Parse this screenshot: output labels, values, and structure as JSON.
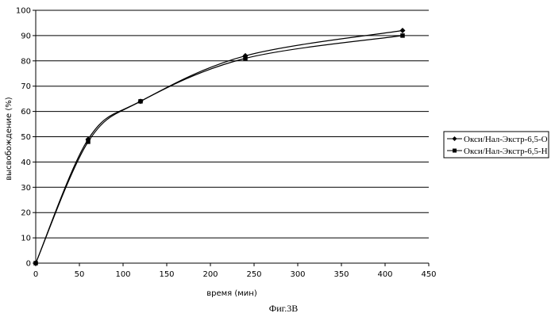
{
  "chart_data": {
    "type": "line",
    "xlabel": "время (мин)",
    "ylabel": "высвобождение (%)",
    "caption": "Фиг.3В",
    "xlim": [
      0,
      450
    ],
    "ylim": [
      0,
      100
    ],
    "x_ticks": [
      0,
      50,
      100,
      150,
      200,
      250,
      300,
      350,
      400,
      450
    ],
    "y_ticks": [
      0,
      10,
      20,
      30,
      40,
      50,
      60,
      70,
      80,
      90,
      100
    ],
    "grid": "horizontal",
    "legend_position": "right",
    "series": [
      {
        "name": "Окси/Нал-Экстр-6,5-О",
        "marker": "diamond",
        "x": [
          0,
          60,
          120,
          240,
          420
        ],
        "values": [
          0,
          49,
          64,
          82,
          92
        ]
      },
      {
        "name": "Окси/Нал-Экстр-6,5-Н",
        "marker": "square",
        "x": [
          0,
          60,
          120,
          240,
          420
        ],
        "values": [
          0,
          48,
          64,
          81,
          90
        ]
      }
    ]
  }
}
